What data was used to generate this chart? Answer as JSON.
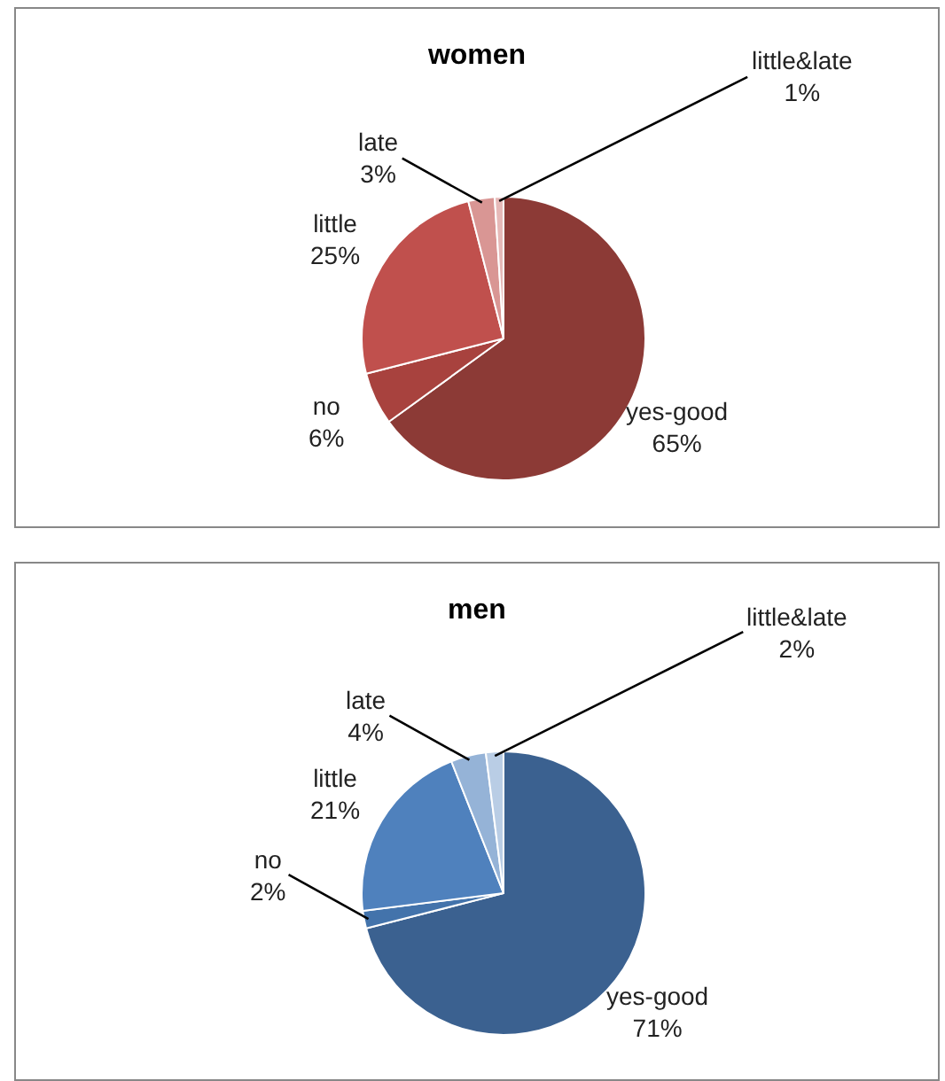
{
  "chart_data": [
    {
      "type": "pie",
      "title": "women",
      "categories": [
        "yes-good",
        "no",
        "little",
        "late",
        "little&late"
      ],
      "values": [
        65,
        6,
        25,
        3,
        1
      ],
      "value_labels": [
        "65%",
        "6%",
        "25%",
        "3%",
        "1%"
      ],
      "colors": [
        "#8c3a36",
        "#a8423e",
        "#c0504d",
        "#d99694",
        "#e6b9b8"
      ]
    },
    {
      "type": "pie",
      "title": "men",
      "categories": [
        "yes-good",
        "no",
        "little",
        "late",
        "little&late"
      ],
      "values": [
        71,
        2,
        21,
        4,
        2
      ],
      "value_labels": [
        "71%",
        "2%",
        "21%",
        "4%",
        "2%"
      ],
      "colors": [
        "#3b6190",
        "#4373ab",
        "#4f81bd",
        "#95b3d7",
        "#b9cde5"
      ]
    }
  ]
}
